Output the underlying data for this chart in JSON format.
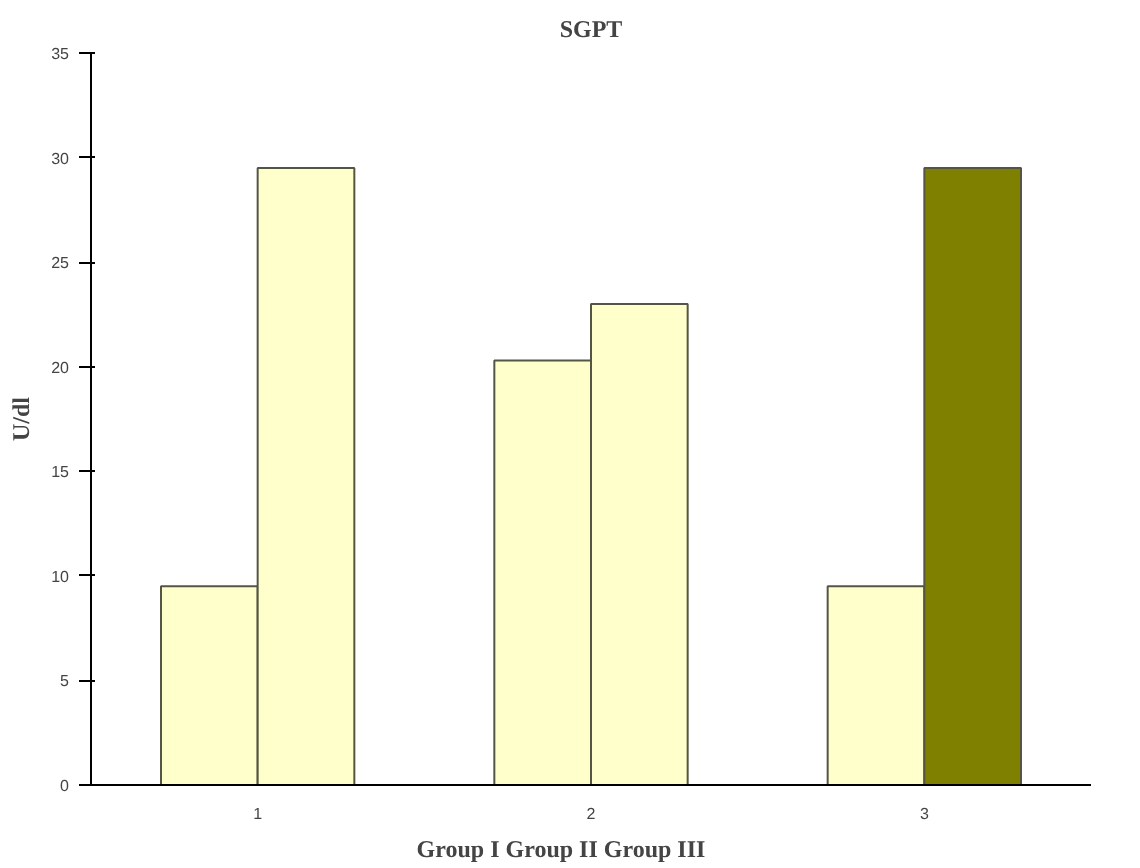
{
  "chart_data": {
    "type": "bar",
    "title": "SGPT",
    "ylabel": "U/dl",
    "xlabel": "Group I      Group II      Group III",
    "categories": [
      "1",
      "2",
      "3"
    ],
    "series": [
      {
        "colors": [
          "#ffffcc",
          "#ffffcc",
          "#ffffcc"
        ],
        "values": [
          9.5,
          20.3,
          9.5
        ]
      },
      {
        "colors": [
          "#ffffcc",
          "#ffffcc",
          "#808000"
        ],
        "values": [
          29.5,
          23.0,
          29.5
        ]
      }
    ],
    "ylim": [
      0,
      35
    ],
    "yticks": [
      0,
      5,
      10,
      15,
      20,
      25,
      30,
      35
    ],
    "grid": false
  }
}
